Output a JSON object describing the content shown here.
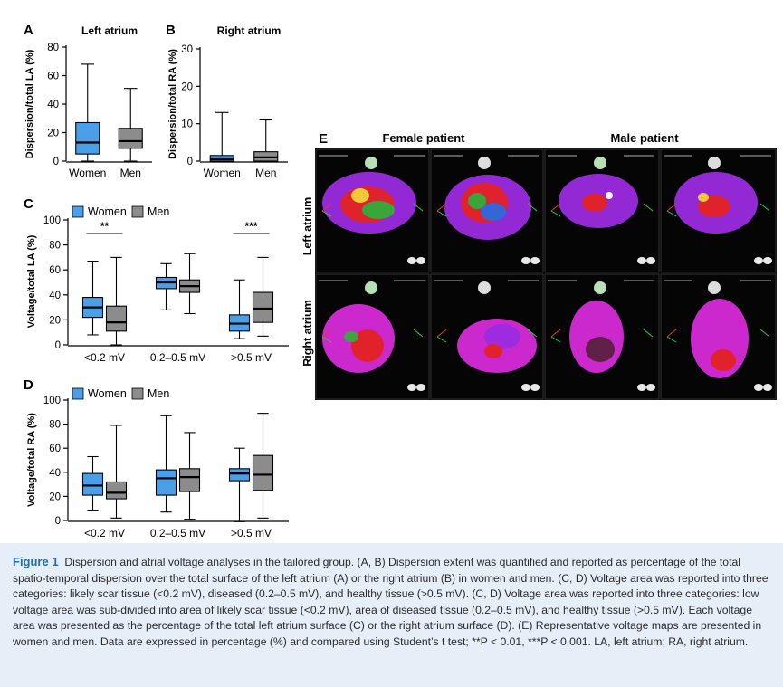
{
  "colors": {
    "women": "#4a9fe8",
    "men": "#8c8c8c",
    "caption_label": "#1e6fb0",
    "background": "#e6eef7"
  },
  "chart_data": [
    {
      "panel": "A",
      "type": "box",
      "title": "Left atrium",
      "ylabel": "Dispersion/total LA (%)",
      "ylim": [
        0,
        80
      ],
      "yticks": [
        0,
        20,
        40,
        60,
        80
      ],
      "categories": [
        "Women",
        "Men"
      ],
      "series": [
        {
          "name": "Women",
          "boxes": [
            {
              "min": 0,
              "q1": 5,
              "median": 13,
              "q3": 27,
              "max": 68
            }
          ]
        },
        {
          "name": "Men",
          "boxes": [
            {
              "min": 0,
              "q1": 9,
              "median": 14,
              "q3": 23,
              "max": 51
            }
          ]
        }
      ]
    },
    {
      "panel": "B",
      "type": "box",
      "title": "Right atrium",
      "ylabel": "Dispersion/total RA (%)",
      "ylim": [
        0,
        30
      ],
      "yticks": [
        0,
        10,
        20,
        30
      ],
      "categories": [
        "Women",
        "Men"
      ],
      "series": [
        {
          "name": "Women",
          "boxes": [
            {
              "min": 0,
              "q1": 0,
              "median": 0.5,
              "q3": 1.5,
              "max": 13
            }
          ]
        },
        {
          "name": "Men",
          "boxes": [
            {
              "min": 0,
              "q1": 0,
              "median": 1,
              "q3": 2.5,
              "max": 11
            }
          ]
        }
      ]
    },
    {
      "panel": "C",
      "type": "box",
      "ylabel": "Voltage/total LA (%)",
      "ylim": [
        0,
        100
      ],
      "yticks": [
        0,
        20,
        40,
        60,
        80,
        100
      ],
      "categories": [
        "<0.2 mV",
        "0.2–0.5 mV",
        ">0.5 mV"
      ],
      "legend": [
        "Women",
        "Men"
      ],
      "significance": [
        "**",
        "",
        "***"
      ],
      "series": [
        {
          "name": "Women",
          "boxes": [
            {
              "min": 8,
              "q1": 22,
              "median": 30,
              "q3": 38,
              "max": 67
            },
            {
              "min": 28,
              "q1": 45,
              "median": 50,
              "q3": 54,
              "max": 65
            },
            {
              "min": 5,
              "q1": 11,
              "median": 17,
              "q3": 24,
              "max": 52
            }
          ]
        },
        {
          "name": "Men",
          "boxes": [
            {
              "min": 0,
              "q1": 11,
              "median": 18,
              "q3": 31,
              "max": 70
            },
            {
              "min": 25,
              "q1": 42,
              "median": 47,
              "q3": 52,
              "max": 73
            },
            {
              "min": 7,
              "q1": 18,
              "median": 29,
              "q3": 42,
              "max": 70
            }
          ]
        }
      ]
    },
    {
      "panel": "D",
      "type": "box",
      "ylabel": "Voltage/total RA (%)",
      "ylim": [
        0,
        100
      ],
      "yticks": [
        0,
        20,
        40,
        60,
        80,
        100
      ],
      "categories": [
        "<0.2 mV",
        "0.2–0.5 mV",
        ">0.5 mV"
      ],
      "legend": [
        "Women",
        "Men"
      ],
      "series": [
        {
          "name": "Women",
          "boxes": [
            {
              "min": 8,
              "q1": 21,
              "median": 29,
              "q3": 39,
              "max": 53
            },
            {
              "min": 7,
              "q1": 21,
              "median": 35,
              "q3": 42,
              "max": 87
            },
            {
              "min": -1,
              "q1": 33,
              "median": 39,
              "q3": 43,
              "max": 60
            }
          ]
        },
        {
          "name": "Men",
          "boxes": [
            {
              "min": 2,
              "q1": 18,
              "median": 23,
              "q3": 32,
              "max": 79
            },
            {
              "min": 1,
              "q1": 24,
              "median": 36,
              "q3": 43,
              "max": 73
            },
            {
              "min": 2,
              "q1": 25,
              "median": 38,
              "q3": 54,
              "max": 89
            }
          ]
        }
      ]
    }
  ],
  "panel_e": {
    "label": "E",
    "col_labels": [
      "Female patient",
      "Male patient"
    ],
    "row_labels": [
      "Left atrium",
      "Right atrium"
    ]
  },
  "caption": {
    "label": "Figure 1",
    "text": "Dispersion and atrial voltage analyses in the tailored group. (A, B) Dispersion extent was quantified and reported as percentage of the total spatio-temporal dispersion over the total surface of the left atrium (A) or the right atrium (B) in women and men. (C, D) Voltage area was reported into three categories: likely scar tissue (<0.2 mV), diseased (0.2–0.5 mV), and healthy tissue (>0.5 mV). (C, D) Voltage area was reported into three categories: low voltage area was sub-divided into area of likely scar tissue (<0.2 mV), area of diseased tissue (0.2–0.5 mV), and healthy tissue (>0.5 mV). Each voltage area was presented as the percentage of the total left atrium surface (C) or the right atrium surface (D). (E) Representative voltage maps are presented in women and men. Data are expressed in percentage (%) and compared using Student’s t test; **P < 0.01, ***P < 0.001. LA, left atrium; RA, right atrium."
  }
}
